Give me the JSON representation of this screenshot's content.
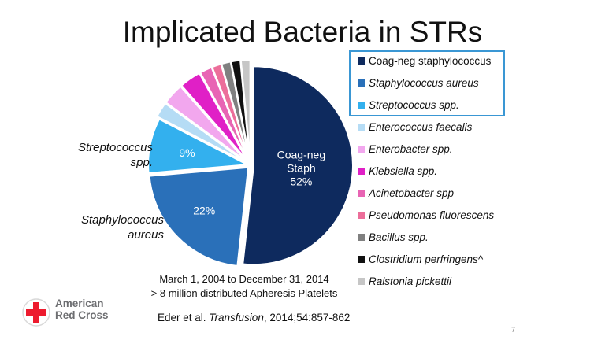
{
  "title": "Implicated Bacteria in STRs",
  "chart_data": {
    "type": "pie",
    "title": "Implicated Bacteria in STRs",
    "slices": [
      {
        "name": "Coag-neg staphylococcus",
        "value": 52,
        "color": "#0e2a5e",
        "label": [
          "Coag-neg",
          "Staph",
          "52%"
        ],
        "exploded": false
      },
      {
        "name": "Staphylococcus aureus",
        "value": 22,
        "color": "#2a70b9",
        "label": [
          "22%"
        ],
        "exploded": false
      },
      {
        "name": "Streptococcus spp.",
        "value": 9,
        "color": "#33b0ee",
        "label": [
          "9%"
        ],
        "exploded": false
      },
      {
        "name": "Enterococcus faecalis",
        "value": 2.5,
        "color": "#b5dcf5",
        "label": [],
        "exploded": true
      },
      {
        "name": "Enterobacter spp.",
        "value": 3.5,
        "color": "#f2a7ee",
        "label": [],
        "exploded": true
      },
      {
        "name": "Klebsiella spp.",
        "value": 3.5,
        "color": "#e020c6",
        "label": [],
        "exploded": true
      },
      {
        "name": "Acinetobacter spp",
        "value": 2,
        "color": "#e864b4",
        "label": [],
        "exploded": true
      },
      {
        "name": "Pseudomonas fluorescens",
        "value": 1.5,
        "color": "#ec6e9a",
        "label": [],
        "exploded": true
      },
      {
        "name": "Bacillus spp.",
        "value": 1.5,
        "color": "#808080",
        "label": [],
        "exploded": true
      },
      {
        "name": "Clostridium perfringens^",
        "value": 1.5,
        "color": "#111111",
        "label": [],
        "exploded": true
      },
      {
        "name": "Ralstonia pickettii",
        "value": 1.5,
        "color": "#c6c6c6",
        "label": [],
        "exploded": true
      }
    ],
    "legend_position": "right"
  },
  "side_labels": {
    "strep": [
      "Streptococcus",
      "spp."
    ],
    "aureus": [
      "Staphylococcus",
      "aureus"
    ]
  },
  "date_lines": [
    "March 1, 2004 to December 31, 2014",
    "> 8 million distributed Apheresis Platelets"
  ],
  "logo": {
    "line1": "American",
    "line2": "Red Cross",
    "cross_color": "#ed1b2e"
  },
  "citation": {
    "authors": "Eder et al. ",
    "journal": "Transfusion",
    "rest": ", 2014;54:857-862"
  },
  "page_number": "7",
  "colors": {
    "legend_border": "#3a97d4",
    "logo_text": "#6d6e71"
  }
}
